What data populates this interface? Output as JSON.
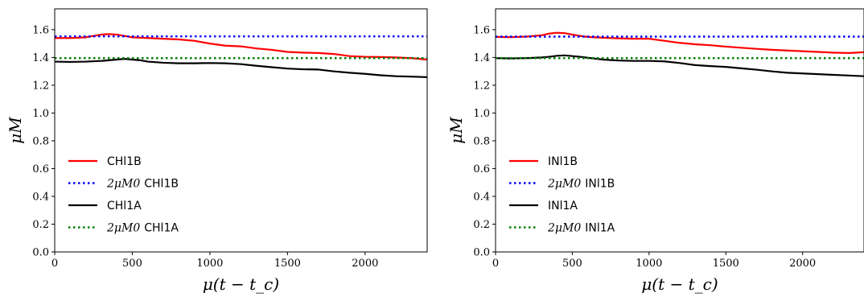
{
  "chart_data": [
    {
      "type": "line",
      "xlabel": "μ(t − t_c)",
      "ylabel": "μM",
      "xlim": [
        0,
        2400
      ],
      "ylim": [
        0,
        1.75
      ],
      "xticks": [
        "0",
        "500",
        "1000",
        "1500",
        "2000"
      ],
      "yticks": [
        "0.0",
        "0.2",
        "0.4",
        "0.6",
        "0.8",
        "1.0",
        "1.2",
        "1.4",
        "1.6"
      ],
      "legend_position": "lower-left",
      "grid": false,
      "series": [
        {
          "name": "CHl1B",
          "legend_math": "",
          "legend_text": "CHl1B",
          "color": "#ff0000",
          "style": "solid",
          "x": [
            0,
            100,
            200,
            250,
            300,
            350,
            400,
            450,
            500,
            600,
            700,
            800,
            900,
            1000,
            1100,
            1200,
            1300,
            1400,
            1500,
            1600,
            1700,
            1800,
            1900,
            2000,
            2100,
            2200,
            2300,
            2400
          ],
          "y": [
            1.54,
            1.54,
            1.545,
            1.555,
            1.565,
            1.568,
            1.565,
            1.555,
            1.545,
            1.54,
            1.535,
            1.53,
            1.52,
            1.5,
            1.485,
            1.48,
            1.465,
            1.455,
            1.44,
            1.435,
            1.432,
            1.425,
            1.41,
            1.405,
            1.403,
            1.4,
            1.395,
            1.385
          ]
        },
        {
          "name": "2μM0 CHl1B",
          "legend_math": "2μM0",
          "legend_text": "CHl1B",
          "color": "#0000ff",
          "style": "dotted",
          "x": [
            0,
            2400
          ],
          "y": [
            1.552,
            1.552
          ]
        },
        {
          "name": "CHl1A",
          "legend_math": "",
          "legend_text": "CHl1A",
          "color": "#000000",
          "style": "solid",
          "x": [
            0,
            100,
            200,
            300,
            400,
            450,
            500,
            550,
            600,
            700,
            800,
            900,
            1000,
            1100,
            1200,
            1300,
            1400,
            1500,
            1600,
            1700,
            1800,
            1900,
            2000,
            2100,
            2200,
            2300,
            2400
          ],
          "y": [
            1.37,
            1.368,
            1.37,
            1.375,
            1.385,
            1.39,
            1.385,
            1.38,
            1.37,
            1.362,
            1.358,
            1.358,
            1.36,
            1.358,
            1.352,
            1.34,
            1.33,
            1.32,
            1.315,
            1.313,
            1.3,
            1.29,
            1.282,
            1.272,
            1.265,
            1.262,
            1.258
          ]
        },
        {
          "name": "2μM0 CHl1A",
          "legend_math": "2μM0",
          "legend_text": "CHl1A",
          "color": "#008000",
          "style": "dotted",
          "x": [
            0,
            2400
          ],
          "y": [
            1.395,
            1.395
          ]
        }
      ]
    },
    {
      "type": "line",
      "xlabel": "μ(t − t_c)",
      "ylabel": "μM",
      "xlim": [
        0,
        2400
      ],
      "ylim": [
        0,
        1.75
      ],
      "xticks": [
        "0",
        "500",
        "1000",
        "1500",
        "2000"
      ],
      "yticks": [
        "0.0",
        "0.2",
        "0.4",
        "0.6",
        "0.8",
        "1.0",
        "1.2",
        "1.4",
        "1.6"
      ],
      "legend_position": "lower-left",
      "grid": false,
      "series": [
        {
          "name": "INl1B",
          "legend_math": "",
          "legend_text": "INl1B",
          "color": "#ff0000",
          "style": "solid",
          "x": [
            0,
            100,
            200,
            300,
            350,
            400,
            450,
            500,
            550,
            600,
            700,
            800,
            900,
            1000,
            1100,
            1200,
            1300,
            1400,
            1500,
            1600,
            1700,
            1800,
            1900,
            2000,
            2100,
            2200,
            2300,
            2400
          ],
          "y": [
            1.548,
            1.546,
            1.55,
            1.56,
            1.572,
            1.578,
            1.575,
            1.565,
            1.555,
            1.548,
            1.542,
            1.538,
            1.535,
            1.535,
            1.52,
            1.505,
            1.495,
            1.488,
            1.478,
            1.47,
            1.462,
            1.455,
            1.45,
            1.445,
            1.44,
            1.435,
            1.432,
            1.438
          ]
        },
        {
          "name": "2μM0 INl1B",
          "legend_math": "2μM0",
          "legend_text": "INl1B",
          "color": "#0000ff",
          "style": "dotted",
          "x": [
            0,
            2400
          ],
          "y": [
            1.55,
            1.55
          ]
        },
        {
          "name": "INl1A",
          "legend_math": "",
          "legend_text": "INl1A",
          "color": "#000000",
          "style": "solid",
          "x": [
            0,
            100,
            200,
            300,
            350,
            400,
            450,
            500,
            550,
            600,
            700,
            800,
            900,
            1000,
            1100,
            1200,
            1300,
            1400,
            1500,
            1600,
            1700,
            1800,
            1900,
            2000,
            2100,
            2200,
            2300,
            2400
          ],
          "y": [
            1.395,
            1.393,
            1.395,
            1.4,
            1.405,
            1.412,
            1.415,
            1.41,
            1.405,
            1.398,
            1.385,
            1.378,
            1.375,
            1.375,
            1.372,
            1.36,
            1.345,
            1.338,
            1.332,
            1.322,
            1.312,
            1.3,
            1.29,
            1.285,
            1.28,
            1.275,
            1.27,
            1.265
          ]
        },
        {
          "name": "2μM0 INl1A",
          "legend_math": "2μM0",
          "legend_text": "INl1A",
          "color": "#008000",
          "style": "dotted",
          "x": [
            0,
            2400
          ],
          "y": [
            1.395,
            1.395
          ]
        }
      ]
    }
  ]
}
